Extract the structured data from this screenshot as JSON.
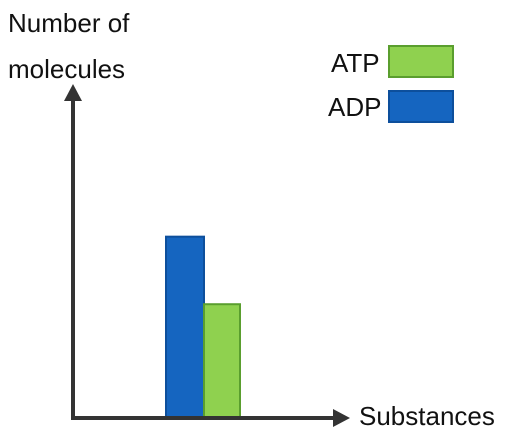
{
  "chart_data": {
    "type": "bar",
    "ylabel_line1": "Number of",
    "ylabel_line2": "molecules",
    "xlabel": "Substances",
    "series": [
      {
        "name": "ATP",
        "value": 3.2,
        "color": "#8fd14f"
      },
      {
        "name": "ADP",
        "value": 5.1,
        "color": "#1565c0"
      }
    ],
    "ylim": [
      0,
      9
    ],
    "grid": false,
    "legend_position": "top-right"
  }
}
